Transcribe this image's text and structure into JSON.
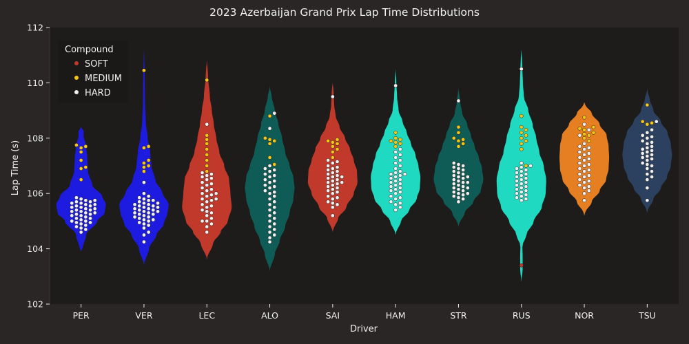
{
  "chart_data": {
    "type": "violin",
    "title": "2023 Azerbaijan Grand Prix Lap Time Distributions",
    "xlabel": "Driver",
    "ylabel": "Lap Time (s)",
    "ylim": [
      102,
      112
    ],
    "yticks": [
      "102",
      "104",
      "106",
      "108",
      "110",
      "112"
    ],
    "grid": false,
    "legend": {
      "title": "Compound",
      "placement": "top-left",
      "entries": [
        {
          "label": "SOFT",
          "color": "#c0392b"
        },
        {
          "label": "MEDIUM",
          "color": "#f5c518"
        },
        {
          "label": "HARD",
          "color": "#f0f0f0"
        }
      ]
    },
    "compound_colors": {
      "SOFT": "#c0392b",
      "MEDIUM": "#f5c518",
      "HARD": "#f0f0f0"
    },
    "drivers": [
      {
        "name": "PER",
        "color": "#1e1be0",
        "min": 103.9,
        "max": 108.4,
        "density": [
          [
            104.0,
            0.06
          ],
          [
            104.5,
            0.2
          ],
          [
            105.0,
            0.65
          ],
          [
            105.3,
            0.95
          ],
          [
            105.6,
            1.0
          ],
          [
            105.9,
            0.85
          ],
          [
            106.3,
            0.45
          ],
          [
            106.8,
            0.28
          ],
          [
            107.3,
            0.25
          ],
          [
            107.7,
            0.2
          ],
          [
            108.1,
            0.1
          ]
        ],
        "laps": {
          "MEDIUM": [
            106.5,
            106.9,
            106.95,
            107.2,
            107.5,
            107.65,
            107.7,
            107.75
          ],
          "HARD": [
            104.6,
            104.7,
            104.75,
            104.85,
            104.9,
            104.95,
            105.0,
            105.05,
            105.1,
            105.2,
            105.25,
            105.3,
            105.35,
            105.4,
            105.45,
            105.5,
            105.55,
            105.6,
            105.65,
            105.7,
            105.75,
            105.8,
            105.85,
            105.4,
            105.3,
            105.6,
            105.5,
            105.2,
            105.7,
            105.1,
            104.8,
            105.0,
            105.45,
            105.55,
            105.35,
            105.65,
            105.25,
            105.15,
            104.95,
            105.75
          ]
        }
      },
      {
        "name": "VER",
        "color": "#1e1be0",
        "min": 103.4,
        "max": 111.2,
        "density": [
          [
            103.5,
            0.04
          ],
          [
            104.0,
            0.2
          ],
          [
            104.5,
            0.5
          ],
          [
            104.9,
            0.8
          ],
          [
            105.3,
            0.95
          ],
          [
            105.6,
            1.0
          ],
          [
            106.0,
            0.75
          ],
          [
            106.5,
            0.45
          ],
          [
            107.0,
            0.3
          ],
          [
            107.5,
            0.25
          ],
          [
            108.0,
            0.15
          ],
          [
            108.6,
            0.07
          ],
          [
            109.3,
            0.04
          ],
          [
            110.3,
            0.03
          ],
          [
            111.0,
            0.01
          ]
        ],
        "laps": {
          "MEDIUM": [
            106.8,
            106.95,
            107.0,
            107.1,
            107.2,
            107.65,
            107.7,
            110.45
          ],
          "HARD": [
            104.25,
            104.5,
            104.6,
            104.75,
            104.85,
            104.9,
            105.0,
            105.05,
            105.1,
            105.15,
            105.2,
            105.25,
            105.3,
            105.35,
            105.4,
            105.45,
            105.5,
            105.55,
            105.6,
            105.65,
            105.7,
            105.75,
            105.8,
            105.85,
            105.9,
            106.0,
            106.4,
            105.35,
            105.45,
            105.55,
            105.25,
            105.15,
            105.65,
            104.95,
            105.05,
            105.4,
            105.6,
            105.3,
            105.75,
            105.5
          ]
        }
      },
      {
        "name": "LEC",
        "color": "#c0392b",
        "min": 103.6,
        "max": 110.8,
        "density": [
          [
            103.7,
            0.04
          ],
          [
            104.2,
            0.25
          ],
          [
            104.6,
            0.55
          ],
          [
            105.0,
            0.85
          ],
          [
            105.5,
            1.0
          ],
          [
            106.0,
            0.95
          ],
          [
            106.5,
            0.9
          ],
          [
            107.0,
            0.7
          ],
          [
            107.5,
            0.5
          ],
          [
            108.0,
            0.38
          ],
          [
            108.5,
            0.28
          ],
          [
            109.0,
            0.2
          ],
          [
            109.5,
            0.12
          ],
          [
            110.2,
            0.05
          ],
          [
            110.7,
            0.02
          ]
        ],
        "laps": {
          "MEDIUM": [
            106.8,
            107.0,
            107.2,
            107.4,
            107.6,
            107.8,
            107.95,
            108.1,
            110.1
          ],
          "HARD": [
            104.6,
            104.8,
            105.0,
            105.2,
            105.4,
            105.6,
            105.8,
            106.0,
            106.2,
            106.4,
            106.6,
            106.75,
            105.3,
            105.5,
            105.7,
            105.9,
            106.1,
            106.3,
            106.5,
            106.7,
            105.1,
            105.35,
            105.55,
            105.75,
            105.95,
            106.15,
            106.35,
            106.55,
            106.0,
            105.8,
            104.9,
            105.0,
            106.65,
            108.5
          ]
        }
      },
      {
        "name": "ALO",
        "color": "#0e5c55",
        "min": 103.2,
        "max": 109.9,
        "density": [
          [
            103.3,
            0.04
          ],
          [
            103.8,
            0.2
          ],
          [
            104.3,
            0.4
          ],
          [
            104.8,
            0.62
          ],
          [
            105.3,
            0.8
          ],
          [
            105.8,
            0.95
          ],
          [
            106.2,
            1.0
          ],
          [
            106.6,
            0.95
          ],
          [
            107.0,
            0.8
          ],
          [
            107.5,
            0.62
          ],
          [
            108.0,
            0.5
          ],
          [
            108.5,
            0.35
          ],
          [
            109.0,
            0.2
          ],
          [
            109.5,
            0.08
          ],
          [
            109.8,
            0.02
          ]
        ],
        "laps": {
          "MEDIUM": [
            107.05,
            107.3,
            107.8,
            107.9,
            107.95,
            108.0,
            108.8
          ],
          "HARD": [
            104.25,
            104.4,
            104.5,
            104.6,
            104.7,
            104.8,
            104.9,
            105.0,
            105.2,
            105.4,
            105.6,
            105.8,
            106.0,
            106.1,
            106.2,
            106.3,
            106.4,
            106.5,
            106.6,
            106.7,
            106.8,
            106.9,
            107.0,
            105.5,
            105.7,
            105.9,
            106.05,
            106.25,
            106.45,
            106.65,
            106.85,
            105.3,
            105.1,
            108.35,
            108.9
          ]
        }
      },
      {
        "name": "SAI",
        "color": "#c0392b",
        "min": 104.6,
        "max": 110.0,
        "density": [
          [
            104.7,
            0.04
          ],
          [
            105.1,
            0.22
          ],
          [
            105.5,
            0.55
          ],
          [
            106.0,
            0.85
          ],
          [
            106.4,
            1.0
          ],
          [
            106.8,
            0.98
          ],
          [
            107.2,
            0.85
          ],
          [
            107.6,
            0.7
          ],
          [
            108.0,
            0.5
          ],
          [
            108.4,
            0.28
          ],
          [
            108.8,
            0.12
          ],
          [
            109.2,
            0.06
          ],
          [
            109.6,
            0.04
          ],
          [
            109.9,
            0.02
          ]
        ],
        "laps": {
          "MEDIUM": [
            107.3,
            107.5,
            107.6,
            107.7,
            107.8,
            107.85,
            107.9,
            107.95
          ],
          "HARD": [
            105.2,
            105.5,
            105.6,
            105.7,
            105.8,
            105.9,
            106.0,
            106.1,
            106.2,
            106.3,
            106.4,
            106.5,
            106.6,
            106.7,
            106.8,
            106.9,
            107.0,
            107.1,
            107.2,
            106.05,
            106.25,
            106.45,
            106.65,
            106.85,
            106.15,
            106.35,
            106.55,
            106.75,
            105.65,
            105.85,
            106.95,
            107.15,
            106.6,
            106.4,
            109.5
          ]
        }
      },
      {
        "name": "HAM",
        "color": "#1fd9c0",
        "min": 104.5,
        "max": 110.5,
        "density": [
          [
            104.6,
            0.04
          ],
          [
            105.0,
            0.22
          ],
          [
            105.4,
            0.55
          ],
          [
            105.8,
            0.85
          ],
          [
            106.2,
            0.98
          ],
          [
            106.6,
            1.0
          ],
          [
            107.0,
            0.92
          ],
          [
            107.4,
            0.8
          ],
          [
            107.8,
            0.62
          ],
          [
            108.2,
            0.45
          ],
          [
            108.6,
            0.28
          ],
          [
            109.0,
            0.12
          ],
          [
            109.5,
            0.06
          ],
          [
            110.0,
            0.03
          ],
          [
            110.4,
            0.01
          ]
        ],
        "laps": {
          "MEDIUM": [
            107.7,
            107.8,
            107.85,
            107.9,
            107.95,
            108.0,
            108.2
          ],
          "HARD": [
            105.4,
            105.5,
            105.6,
            105.7,
            105.8,
            105.9,
            106.0,
            106.1,
            106.2,
            106.3,
            106.4,
            106.5,
            106.6,
            106.7,
            106.75,
            106.8,
            106.9,
            107.0,
            107.1,
            107.2,
            107.3,
            107.4,
            107.5,
            106.05,
            106.25,
            106.45,
            106.65,
            106.35,
            106.55,
            105.65,
            105.85,
            106.15,
            106.7,
            107.6,
            109.9
          ]
        }
      },
      {
        "name": "STR",
        "color": "#0e5c55",
        "min": 104.8,
        "max": 109.8,
        "density": [
          [
            104.9,
            0.04
          ],
          [
            105.3,
            0.25
          ],
          [
            105.7,
            0.6
          ],
          [
            106.1,
            0.9
          ],
          [
            106.5,
            1.0
          ],
          [
            106.9,
            0.95
          ],
          [
            107.3,
            0.82
          ],
          [
            107.7,
            0.65
          ],
          [
            108.1,
            0.5
          ],
          [
            108.5,
            0.35
          ],
          [
            108.9,
            0.15
          ],
          [
            109.3,
            0.07
          ],
          [
            109.7,
            0.02
          ]
        ],
        "laps": {
          "MEDIUM": [
            107.7,
            107.8,
            107.9,
            107.95,
            108.0,
            108.2,
            108.4
          ],
          "HARD": [
            105.7,
            105.8,
            105.9,
            106.0,
            106.1,
            106.2,
            106.3,
            106.4,
            106.5,
            106.6,
            106.7,
            106.8,
            106.9,
            107.0,
            107.1,
            105.95,
            106.15,
            106.35,
            106.55,
            106.75,
            106.95,
            106.05,
            106.25,
            106.45,
            106.65,
            106.85,
            107.05,
            105.85,
            106.6,
            106.4,
            106.2,
            106.0,
            109.35
          ]
        }
      },
      {
        "name": "RUS",
        "color": "#1fd9c0",
        "min": 102.8,
        "max": 111.2,
        "density": [
          [
            102.9,
            0.02
          ],
          [
            103.3,
            0.05
          ],
          [
            103.7,
            0.05
          ],
          [
            104.1,
            0.04
          ],
          [
            104.5,
            0.2
          ],
          [
            105.0,
            0.5
          ],
          [
            105.5,
            0.82
          ],
          [
            106.0,
            0.98
          ],
          [
            106.5,
            1.0
          ],
          [
            107.0,
            0.9
          ],
          [
            107.5,
            0.72
          ],
          [
            108.0,
            0.6
          ],
          [
            108.5,
            0.45
          ],
          [
            109.0,
            0.28
          ],
          [
            109.5,
            0.1
          ],
          [
            110.0,
            0.06
          ],
          [
            110.5,
            0.04
          ],
          [
            111.0,
            0.02
          ]
        ],
        "laps": {
          "SOFT": [
            103.4
          ],
          "MEDIUM": [
            107.0,
            107.6,
            107.8,
            107.9,
            108.0,
            108.1,
            108.2,
            108.3,
            108.4,
            108.8
          ],
          "HARD": [
            105.75,
            105.8,
            105.9,
            106.0,
            106.1,
            106.2,
            106.3,
            106.4,
            106.5,
            106.6,
            106.7,
            106.8,
            106.9,
            107.0,
            107.1,
            105.95,
            106.15,
            106.35,
            106.55,
            106.75,
            106.95,
            106.05,
            106.25,
            106.45,
            106.65,
            105.85,
            106.85,
            110.5
          ]
        }
      },
      {
        "name": "NOR",
        "color": "#e67e22",
        "min": 105.2,
        "max": 109.3,
        "density": [
          [
            105.3,
            0.04
          ],
          [
            105.7,
            0.3
          ],
          [
            106.1,
            0.62
          ],
          [
            106.5,
            0.88
          ],
          [
            106.9,
            0.98
          ],
          [
            107.3,
            1.0
          ],
          [
            107.7,
            0.98
          ],
          [
            108.1,
            0.9
          ],
          [
            108.5,
            0.62
          ],
          [
            108.9,
            0.3
          ],
          [
            109.2,
            0.05
          ]
        ],
        "laps": {
          "MEDIUM": [
            107.9,
            108.0,
            108.1,
            108.15,
            108.2,
            108.3,
            108.35,
            108.4,
            108.75
          ],
          "HARD": [
            105.75,
            106.0,
            106.2,
            106.4,
            106.6,
            106.8,
            107.0,
            107.2,
            107.4,
            107.6,
            107.8,
            106.1,
            106.3,
            106.5,
            106.7,
            106.9,
            107.1,
            107.3,
            107.5,
            107.7,
            106.25,
            106.45,
            106.65,
            106.85,
            107.05,
            107.25,
            107.45,
            107.65,
            108.1,
            108.3,
            108.5
          ]
        }
      },
      {
        "name": "TSU",
        "color": "#2c4060",
        "min": 105.3,
        "max": 109.8,
        "density": [
          [
            105.4,
            0.04
          ],
          [
            105.8,
            0.25
          ],
          [
            106.2,
            0.55
          ],
          [
            106.6,
            0.8
          ],
          [
            107.0,
            0.95
          ],
          [
            107.4,
            1.0
          ],
          [
            107.8,
            0.95
          ],
          [
            108.2,
            0.82
          ],
          [
            108.6,
            0.55
          ],
          [
            109.0,
            0.25
          ],
          [
            109.4,
            0.1
          ],
          [
            109.7,
            0.02
          ]
        ],
        "laps": {
          "MEDIUM": [
            108.5,
            108.55,
            108.6,
            109.2
          ],
          "HARD": [
            105.75,
            106.2,
            106.5,
            106.7,
            106.9,
            107.0,
            107.1,
            107.2,
            107.3,
            107.4,
            107.5,
            107.6,
            107.7,
            107.8,
            107.9,
            108.0,
            108.1,
            108.2,
            108.3,
            106.8,
            107.05,
            107.25,
            107.45,
            107.65,
            107.85,
            108.05,
            106.6,
            107.35,
            107.55,
            108.6
          ]
        }
      }
    ]
  }
}
